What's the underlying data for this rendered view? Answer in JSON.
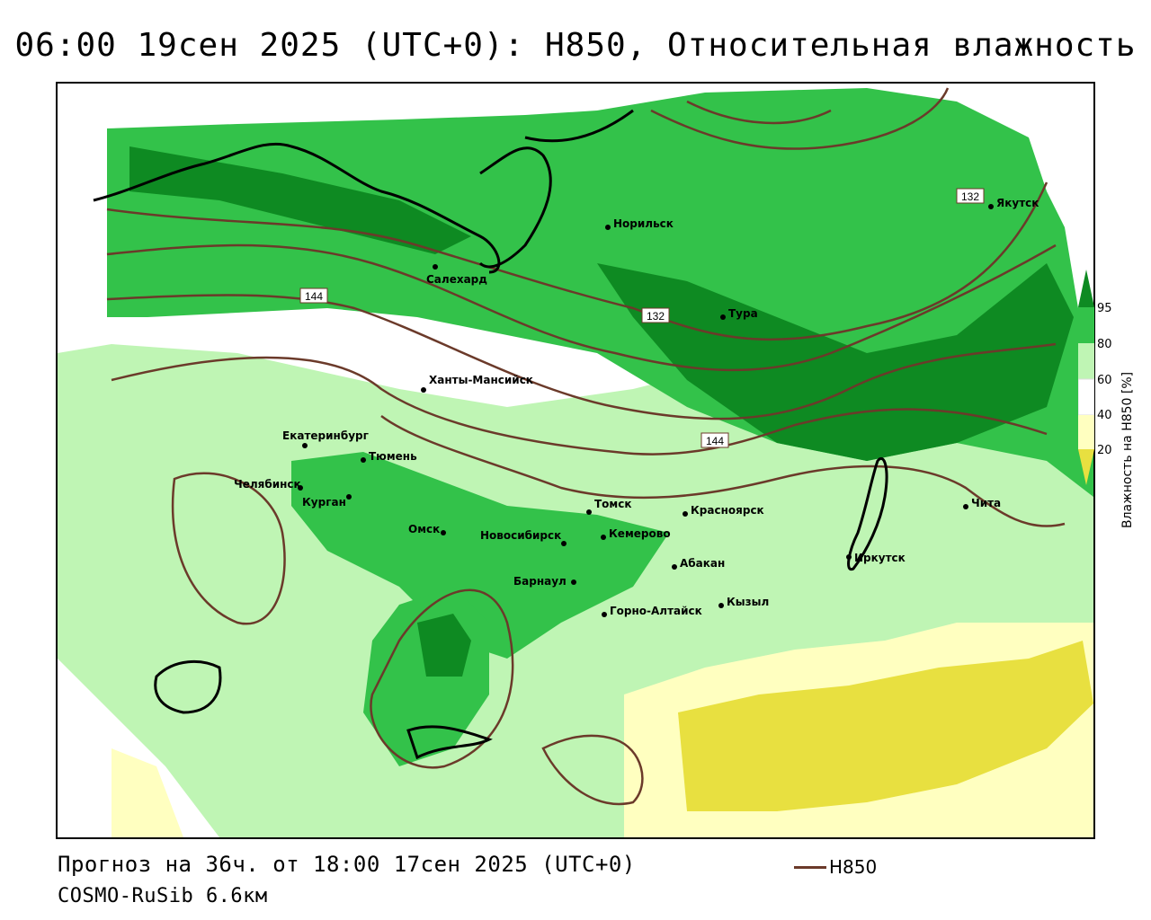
{
  "title": "06:00 19сен 2025 (UTC+0): H850, Относительная влажность",
  "forecast": "Прогноз на 36ч. от 18:00 17сен 2025 (UTC+0)",
  "model": "COSMO-RuSib 6.6км",
  "legend": {
    "line_label": "H850",
    "line_color": "#6b3a2a"
  },
  "colorbar": {
    "label": "Влажность на H850 [%]",
    "ticks": [
      "95",
      "80",
      "60",
      "40",
      "20"
    ],
    "colors": {
      "very_wet": "#0e8a22",
      "wet": "#33c24a",
      "moist": "#bff5b4",
      "dry": "#ffffc0",
      "very_dry": "#e8e040"
    }
  },
  "isoline_labels": [
    "132",
    "144",
    "132",
    "144"
  ],
  "cities": [
    {
      "name": "Норильск"
    },
    {
      "name": "Якутск"
    },
    {
      "name": "Салехард"
    },
    {
      "name": "Тура"
    },
    {
      "name": "Ханты-Мансийск"
    },
    {
      "name": "Екатеринбург"
    },
    {
      "name": "Тюмень"
    },
    {
      "name": "Челябинск"
    },
    {
      "name": "Курган"
    },
    {
      "name": "Омск"
    },
    {
      "name": "Новосибирск"
    },
    {
      "name": "Томск"
    },
    {
      "name": "Кемерово"
    },
    {
      "name": "Красноярск"
    },
    {
      "name": "Абакан"
    },
    {
      "name": "Барнаул"
    },
    {
      "name": "Горно-Алтайск"
    },
    {
      "name": "Кызыл"
    },
    {
      "name": "Иркутск"
    },
    {
      "name": "Чита"
    }
  ]
}
